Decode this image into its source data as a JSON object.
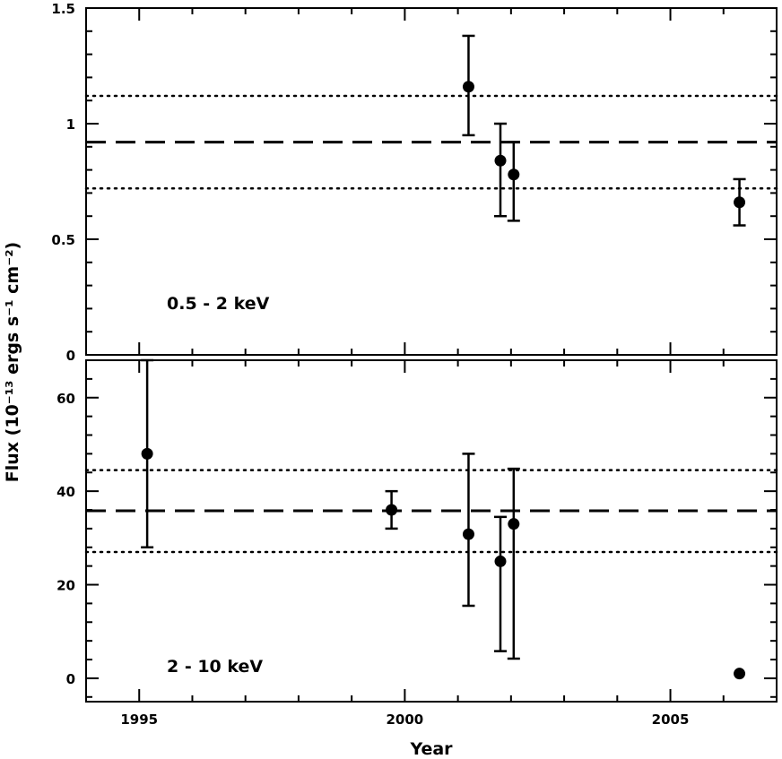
{
  "chart_data": [
    {
      "type": "scatter",
      "panel": "top",
      "label": "0.5 - 2 keV",
      "xlim": [
        1994,
        2007
      ],
      "ylim": [
        0,
        1.5
      ],
      "x_ticks": [
        1995,
        2000,
        2005
      ],
      "y_ticks": [
        0,
        0.5,
        1,
        1.5
      ],
      "y_tick_labels": [
        "0",
        "0.5",
        "1",
        "1.5"
      ],
      "points": [
        {
          "x": 2001.2,
          "y": 1.16,
          "err_low": 0.95,
          "err_high": 1.38
        },
        {
          "x": 2001.8,
          "y": 0.84,
          "err_low": 0.6,
          "err_high": 1.0
        },
        {
          "x": 2002.05,
          "y": 0.78,
          "err_low": 0.58,
          "err_high": 0.92
        },
        {
          "x": 2006.3,
          "y": 0.66,
          "err_low": 0.56,
          "err_high": 0.76
        }
      ],
      "mean_line": 0.92,
      "range_lines": [
        0.72,
        1.12
      ]
    },
    {
      "type": "scatter",
      "panel": "bottom",
      "label": "2 - 10 keV",
      "xlim": [
        1994,
        2007
      ],
      "ylim": [
        -5,
        68
      ],
      "x_ticks": [
        1995,
        2000,
        2005
      ],
      "y_ticks": [
        0,
        20,
        40,
        60
      ],
      "y_tick_labels": [
        "0",
        "20",
        "40",
        "60"
      ],
      "points": [
        {
          "x": 1995.15,
          "y": 48,
          "err_low": 28,
          "err_high": 68
        },
        {
          "x": 1999.75,
          "y": 36,
          "err_low": 32,
          "err_high": 40
        },
        {
          "x": 2001.2,
          "y": 30.8,
          "err_low": 15.5,
          "err_high": 48
        },
        {
          "x": 2001.8,
          "y": 25,
          "err_low": 5.8,
          "err_high": 34.5
        },
        {
          "x": 2002.05,
          "y": 33,
          "err_low": 4.2,
          "err_high": 44.8
        },
        {
          "x": 2006.3,
          "y": 1,
          "err_low": 1,
          "err_high": 1
        }
      ],
      "mean_line": 35.8,
      "range_lines": [
        27,
        44.5
      ]
    }
  ],
  "xlabel": "Year",
  "ylabel": "Flux (10⁻¹³ ergs s⁻¹ cm⁻²)",
  "x_tick_labels": [
    "1995",
    "2000",
    "2005"
  ],
  "colors": {
    "ink": "#000000",
    "background": "#ffffff"
  }
}
